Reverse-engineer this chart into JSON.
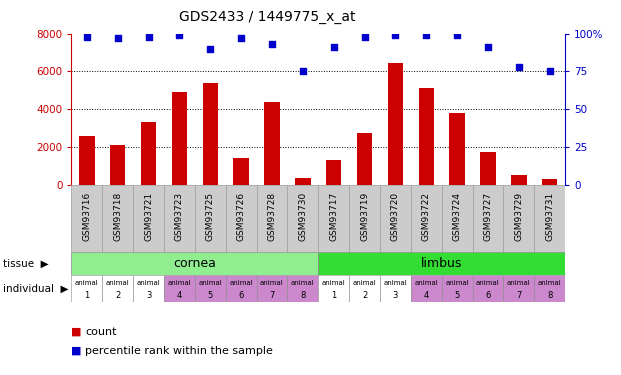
{
  "title": "GDS2433 / 1449775_x_at",
  "samples": [
    "GSM93716",
    "GSM93718",
    "GSM93721",
    "GSM93723",
    "GSM93725",
    "GSM93726",
    "GSM93728",
    "GSM93730",
    "GSM93717",
    "GSM93719",
    "GSM93720",
    "GSM93722",
    "GSM93724",
    "GSM93727",
    "GSM93729",
    "GSM93731"
  ],
  "counts": [
    2600,
    2100,
    3300,
    4900,
    5400,
    1400,
    4400,
    350,
    1300,
    2750,
    6450,
    5100,
    3800,
    1750,
    500,
    300
  ],
  "percentile_ranks": [
    98,
    97,
    98,
    99,
    90,
    97,
    93,
    75,
    91,
    98,
    99,
    99,
    99,
    91,
    78,
    75
  ],
  "bar_color": "#cc0000",
  "dot_color": "#0000cc",
  "ylim_left": [
    0,
    8000
  ],
  "ylim_right": [
    0,
    100
  ],
  "yticks_left": [
    0,
    2000,
    4000,
    6000,
    8000
  ],
  "yticks_right": [
    0,
    25,
    50,
    75,
    100
  ],
  "ytick_labels_right": [
    "0",
    "25",
    "50",
    "75",
    "100%"
  ],
  "tissue_names": [
    "cornea",
    "limbus"
  ],
  "tissue_ranges": [
    [
      0,
      7
    ],
    [
      8,
      15
    ]
  ],
  "tissue_color_cornea": "#90ee90",
  "tissue_color_limbus": "#33dd33",
  "individual_top": [
    "animal",
    "animal",
    "animal",
    "animal",
    "animal",
    "animal",
    "animal",
    "animal",
    "animal",
    "animal",
    "animal",
    "animal",
    "animal",
    "animal",
    "animal",
    "animal"
  ],
  "individual_bot": [
    "1",
    "2",
    "3",
    "4",
    "5",
    "6",
    "7",
    "8",
    "1",
    "2",
    "3",
    "4",
    "5",
    "6",
    "7",
    "8"
  ],
  "individual_colors": [
    "#ffffff",
    "#ffffff",
    "#ffffff",
    "#cc88cc",
    "#cc88cc",
    "#cc88cc",
    "#cc88cc",
    "#cc88cc",
    "#ffffff",
    "#ffffff",
    "#ffffff",
    "#cc88cc",
    "#cc88cc",
    "#cc88cc",
    "#cc88cc",
    "#cc88cc"
  ],
  "sample_bg_color": "#cccccc",
  "legend_count": "count",
  "legend_pct": "percentile rank within the sample",
  "left_axis_color": "#cc0000",
  "right_axis_color": "#0000cc",
  "fig_bg": "#ffffff",
  "grid_dotted_color": "#000000"
}
